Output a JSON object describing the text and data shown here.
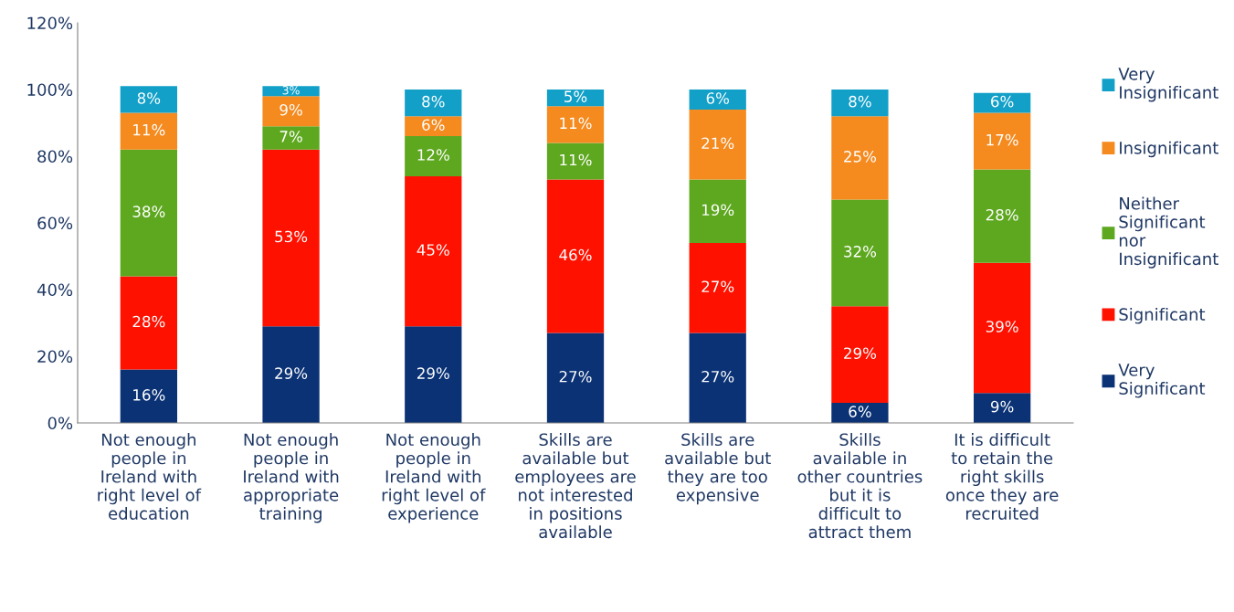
{
  "chart_data": {
    "type": "bar",
    "stacked": true,
    "grid": false,
    "legend": "right",
    "categories": [
      "Not enough people in Ireland with right level of education",
      "Not enough people in Ireland with appropriate training",
      "Not enough people in Ireland with right level of experience",
      "Skills are available but employees are not interested in positions available",
      "Skills are available but they are too expensive",
      "Skills available in other countries but it is difficult to attract them",
      "It is difficult to retain the right skills once they are recruited"
    ],
    "series": [
      {
        "name": "Very Significant",
        "color": "#0b3275",
        "values": [
          16,
          29,
          29,
          27,
          27,
          6,
          9
        ],
        "value_labels": [
          "16%",
          "29%",
          "29%",
          "27%",
          "27%",
          "6%",
          "9%"
        ]
      },
      {
        "name": "Significant",
        "color": "#ff1100",
        "values": [
          28,
          53,
          45,
          46,
          27,
          29,
          39
        ],
        "value_labels": [
          "28%",
          "53%",
          "45%",
          "46%",
          "27%",
          "29%",
          "39%"
        ]
      },
      {
        "name": "Neither Significant nor Insignificant",
        "color": "#5ea820",
        "values": [
          38,
          7,
          12,
          11,
          19,
          32,
          28
        ],
        "value_labels": [
          "38%",
          "7%",
          "12%",
          "11%",
          "19%",
          "32%",
          "28%"
        ]
      },
      {
        "name": "Insignificant",
        "color": "#f58a1f",
        "values": [
          11,
          9,
          6,
          11,
          21,
          25,
          17
        ],
        "value_labels": [
          "11%",
          "9%",
          "6%",
          "11%",
          "21%",
          "25%",
          "17%"
        ]
      },
      {
        "name": "Very Insignificant",
        "color": "#12a0c8",
        "values": [
          8,
          3,
          8,
          5,
          6,
          8,
          6
        ],
        "value_labels": [
          "8%",
          "3%",
          "8%",
          "5%",
          "6%",
          "8%",
          "6%"
        ]
      }
    ],
    "ylim": [
      0,
      120
    ],
    "yticks": [
      {
        "value": 0,
        "label": "0%"
      },
      {
        "value": 20,
        "label": "20%"
      },
      {
        "value": 40,
        "label": "40%"
      },
      {
        "value": 60,
        "label": "60%"
      },
      {
        "value": 80,
        "label": "80%"
      },
      {
        "value": 100,
        "label": "100%"
      },
      {
        "value": 120,
        "label": "120%"
      }
    ]
  }
}
